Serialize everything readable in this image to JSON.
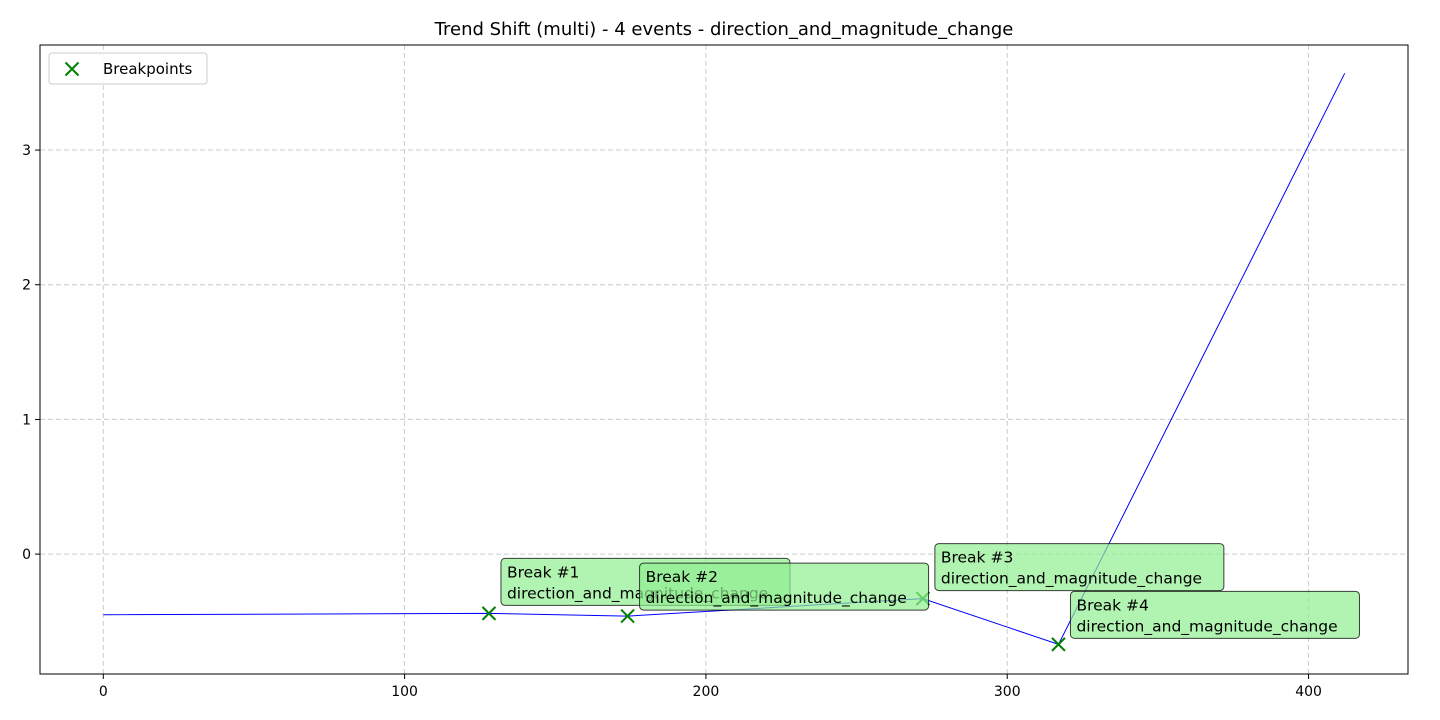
{
  "chart_data": {
    "type": "line",
    "title": "Trend Shift (multi) - 4 events - direction_and_magnitude_change",
    "xlabel": "",
    "ylabel": "",
    "xlim": [
      -21,
      433
    ],
    "ylim": [
      -0.89,
      3.78
    ],
    "xticks": [
      0,
      100,
      200,
      300,
      400
    ],
    "yticks": [
      0,
      1,
      2,
      3
    ],
    "grid": true,
    "legend": {
      "position": "top-left",
      "entries": [
        "Breakpoints"
      ]
    },
    "series": [
      {
        "color": "#0000ff",
        "points": [
          [
            0,
            -0.45
          ],
          [
            128,
            -0.44
          ],
          [
            174,
            -0.46
          ],
          [
            272,
            -0.33
          ],
          [
            317,
            -0.67
          ],
          [
            412,
            3.57
          ]
        ]
      }
    ],
    "breakpoints": {
      "label": "Breakpoints",
      "color": "#008000",
      "points": [
        [
          128,
          -0.44
        ],
        [
          174,
          -0.46
        ],
        [
          272,
          -0.33
        ],
        [
          317,
          -0.67
        ]
      ]
    },
    "annotations": [
      {
        "x": 128,
        "y": -0.44,
        "line1": "Break #1",
        "line2": "direction_and_magnitude_change"
      },
      {
        "x": 174,
        "y": -0.46,
        "line1": "Break #2",
        "line2": "direction_and_magnitude_change"
      },
      {
        "x": 272,
        "y": -0.33,
        "line1": "Break #3",
        "line2": "direction_and_magnitude_change"
      },
      {
        "x": 317,
        "y": -0.67,
        "line1": "Break #4",
        "line2": "direction_and_magnitude_change"
      }
    ]
  }
}
